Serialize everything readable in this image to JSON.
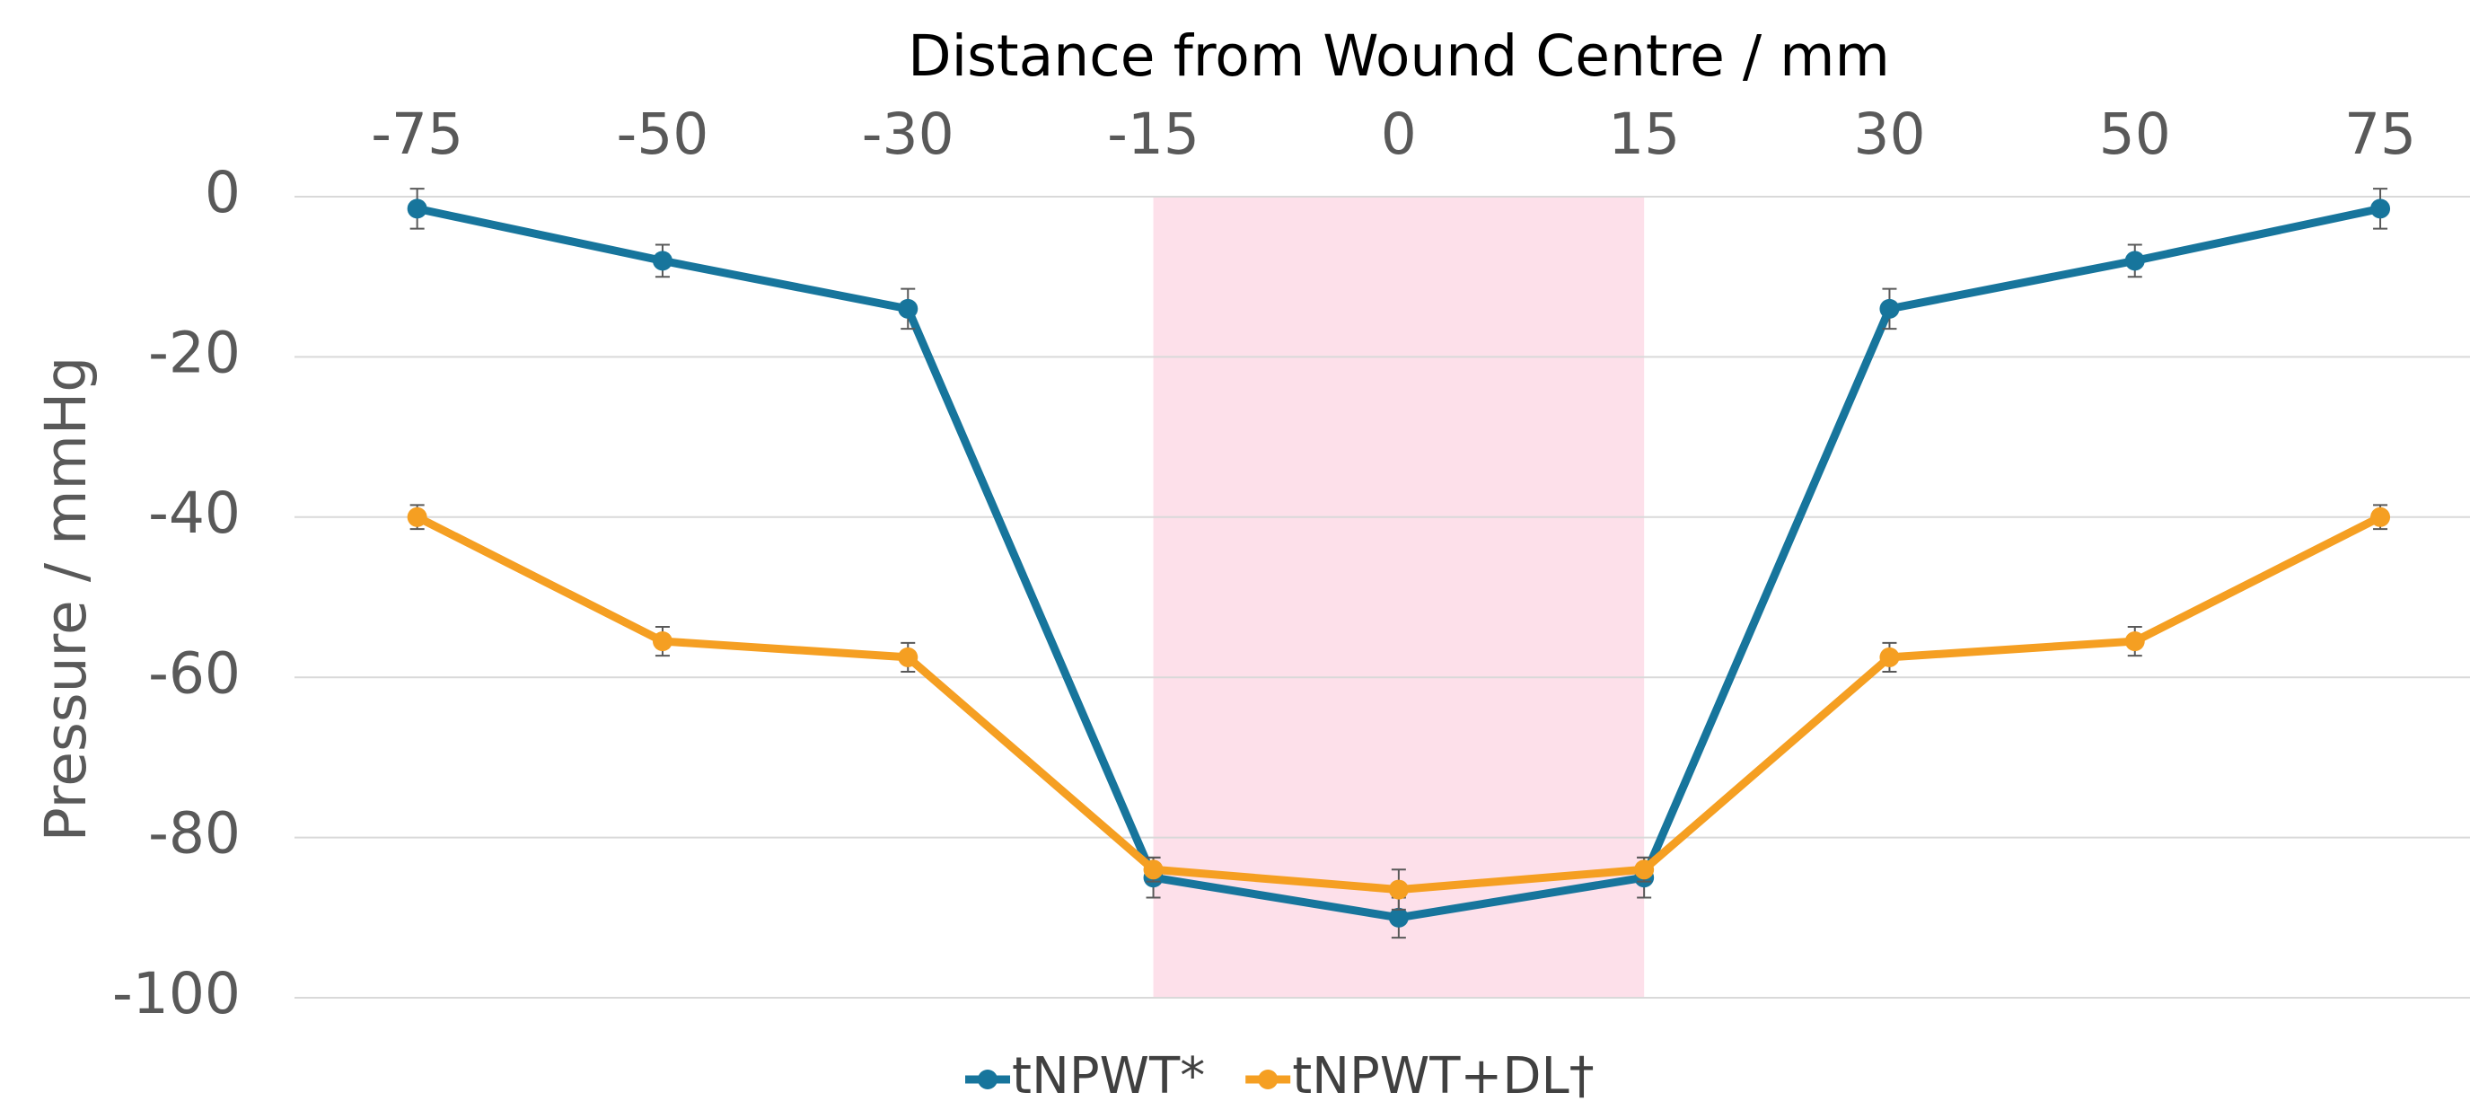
{
  "chart_data": {
    "type": "line",
    "title": "Distance from Wound Centre / mm",
    "y_label": "Pressure / mmHg",
    "categories": [
      "-75",
      "-50",
      "-30",
      "-15",
      "0",
      "15",
      "30",
      "50",
      "75"
    ],
    "series": [
      {
        "name": "tNPWT*",
        "color": "#17759c",
        "values": [
          -1.5,
          -8,
          -14,
          -85,
          -90,
          -85,
          -14,
          -8,
          -1.5
        ],
        "errors": [
          2.5,
          2,
          2.5,
          2.5,
          2.5,
          2.5,
          2.5,
          2,
          2.5
        ]
      },
      {
        "name": "tNPWT+DL†",
        "color": "#f59f22",
        "values": [
          -40,
          -55.5,
          -57.5,
          -84,
          -86.5,
          -84,
          -57.5,
          -55.5,
          -40
        ],
        "errors": [
          1.5,
          1.8,
          1.8,
          1.5,
          2.5,
          1.5,
          1.8,
          1.8,
          1.5
        ]
      }
    ],
    "highlight": {
      "from": "-15",
      "to": "15",
      "color": "#fde0ea"
    },
    "ylim": [
      -100,
      0
    ],
    "yticks": [
      0,
      -20,
      -40,
      -60,
      -80,
      -100
    ],
    "grid": true,
    "x_axis_position": "top",
    "legend": "bottom"
  }
}
